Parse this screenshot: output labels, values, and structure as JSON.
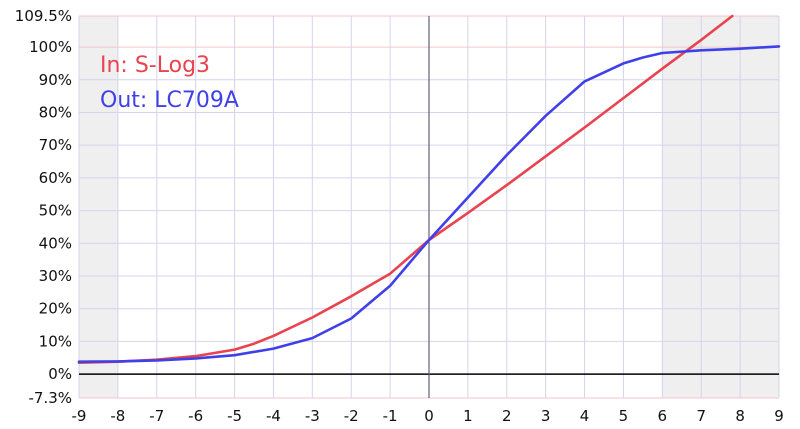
{
  "chart_data": {
    "type": "line",
    "xlabel": "",
    "ylabel": "",
    "xlim": [
      -9,
      9
    ],
    "ylim": [
      -7.3,
      109.5
    ],
    "x_ticks": [
      -9,
      -8,
      -7,
      -6,
      -5,
      -4,
      -3,
      -2,
      -1,
      0,
      1,
      2,
      3,
      4,
      5,
      6,
      7,
      8,
      9
    ],
    "x_tick_labels": [
      "-9",
      "-8",
      "-7",
      "-6",
      "-5",
      "-4",
      "-3",
      "-2",
      "-1",
      "0",
      "1",
      "2",
      "3",
      "4",
      "5",
      "6",
      "7",
      "8",
      "9"
    ],
    "y_ticks": [
      -7.3,
      0,
      10,
      20,
      30,
      40,
      50,
      60,
      70,
      80,
      90,
      100,
      109.5
    ],
    "y_tick_labels": [
      "-7.3%",
      "0%",
      "10%",
      "20%",
      "30%",
      "40%",
      "50%",
      "60%",
      "70%",
      "80%",
      "90%",
      "100%",
      "109.5%"
    ],
    "grid": true,
    "shaded_ranges": [
      [
        -9,
        -8
      ],
      [
        6,
        9
      ]
    ],
    "legend": {
      "placement": "top-left"
    },
    "series": [
      {
        "name": "In: S-Log3",
        "color": "#e8434f",
        "points": [
          [
            -9,
            3.5
          ],
          [
            -8,
            3.8
          ],
          [
            -7,
            4.4
          ],
          [
            -6,
            5.5
          ],
          [
            -5,
            7.5
          ],
          [
            -4.5,
            9.3
          ],
          [
            -4,
            11.7
          ],
          [
            -3,
            17.3
          ],
          [
            -2,
            23.8
          ],
          [
            -1,
            30.7
          ],
          [
            0,
            41.0
          ],
          [
            1,
            49.3
          ],
          [
            2,
            57.8
          ],
          [
            3,
            66.6
          ],
          [
            4,
            75.4
          ],
          [
            5,
            84.4
          ],
          [
            6,
            93.4
          ],
          [
            7,
            102.2
          ],
          [
            7.8,
            109.5
          ]
        ]
      },
      {
        "name": "Out: LC709A",
        "color": "#4040e8",
        "points": [
          [
            -9,
            3.8
          ],
          [
            -8,
            3.9
          ],
          [
            -7,
            4.2
          ],
          [
            -6,
            4.8
          ],
          [
            -5,
            5.8
          ],
          [
            -4,
            7.8
          ],
          [
            -3,
            11.0
          ],
          [
            -2,
            17.0
          ],
          [
            -1,
            27.0
          ],
          [
            0,
            41.0
          ],
          [
            1,
            54.0
          ],
          [
            2,
            67.0
          ],
          [
            3,
            79.0
          ],
          [
            4,
            89.5
          ],
          [
            5,
            95.0
          ],
          [
            5.5,
            96.8
          ],
          [
            6,
            98.2
          ],
          [
            7,
            99.0
          ],
          [
            8,
            99.5
          ],
          [
            9,
            100.2
          ]
        ]
      }
    ]
  }
}
